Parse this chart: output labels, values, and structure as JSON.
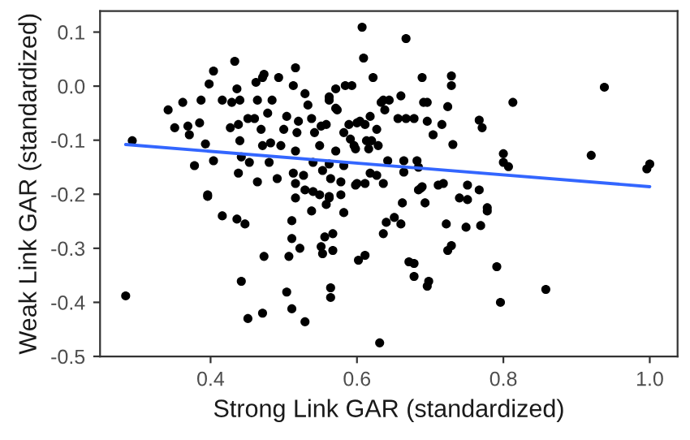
{
  "chart_data": {
    "type": "scatter",
    "xlabel": "Strong Link GAR (standardized)",
    "ylabel": "Weak Link GAR (standardized)",
    "xlim": [
      0.249,
      1.038
    ],
    "ylim": [
      -0.5,
      0.139
    ],
    "xticks": [
      {
        "value": 0.4,
        "label": "0.4"
      },
      {
        "value": 0.6,
        "label": "0.6"
      },
      {
        "value": 0.8,
        "label": "0.8"
      },
      {
        "value": 1.0,
        "label": "1.0"
      }
    ],
    "yticks": [
      {
        "value": -0.5,
        "label": "-0.5"
      },
      {
        "value": -0.4,
        "label": "-0.4"
      },
      {
        "value": -0.3,
        "label": "-0.3"
      },
      {
        "value": -0.2,
        "label": "-0.2"
      },
      {
        "value": -0.1,
        "label": "-0.1"
      },
      {
        "value": 0.0,
        "label": "0.0"
      },
      {
        "value": 0.1,
        "label": "0.1"
      }
    ],
    "grid": false,
    "legend": false,
    "series": [
      {
        "marker": "circle",
        "color": "#000000",
        "x": [
          0.293,
          0.342,
          0.351,
          0.362,
          0.369,
          0.371,
          0.378,
          0.385,
          0.387,
          0.393,
          0.396,
          0.398,
          0.404,
          0.404,
          0.416,
          0.427,
          0.429,
          0.433,
          0.436,
          0.438,
          0.44,
          0.442,
          0.438,
          0.44,
          0.451,
          0.453,
          0.46,
          0.462,
          0.464,
          0.469,
          0.471,
          0.471,
          0.473,
          0.478,
          0.48,
          0.482,
          0.484,
          0.491,
          0.493,
          0.496,
          0.5,
          0.504,
          0.513,
          0.516,
          0.518,
          0.516,
          0.513,
          0.52,
          0.527,
          0.529,
          0.533,
          0.538,
          0.54,
          0.542,
          0.549,
          0.551,
          0.553,
          0.558,
          0.562,
          0.564,
          0.571,
          0.573,
          0.578,
          0.582,
          0.584,
          0.589,
          0.593,
          0.596,
          0.6,
          0.604,
          0.607,
          0.609,
          0.611,
          0.613,
          0.618,
          0.622,
          0.627,
          0.629,
          0.633,
          0.638,
          0.667,
          0.562,
          0.571,
          0.636,
          0.644,
          0.66,
          0.689,
          0.729,
          0.729,
          0.691,
          0.696,
          0.724,
          0.618,
          0.656,
          0.667,
          0.678,
          0.696,
          0.716,
          0.767,
          0.771,
          0.813,
          0.704,
          0.6,
          0.591,
          0.62,
          0.616,
          0.598,
          0.571,
          0.731,
          0.938,
          0.8,
          0.8,
          0.807,
          0.92,
          1.0,
          0.996,
          0.642,
          0.664,
          0.682,
          0.664,
          0.684,
          0.562,
          0.582,
          0.627,
          0.611,
          0.636,
          0.689,
          0.684,
          0.711,
          0.718,
          0.751,
          0.767,
          0.662,
          0.693,
          0.74,
          0.751,
          0.778,
          0.562,
          0.578,
          0.582,
          0.567,
          0.567,
          0.687,
          0.778,
          0.636,
          0.64,
          0.651,
          0.66,
          0.722,
          0.749,
          0.769,
          0.602,
          0.611,
          0.671,
          0.678,
          0.678,
          0.724,
          0.729,
          0.698,
          0.696,
          0.564,
          0.564,
          0.791,
          0.796,
          0.858,
          0.631,
          0.284,
          0.396,
          0.416,
          0.436,
          0.447,
          0.442,
          0.451,
          0.471,
          0.473,
          0.464,
          0.504,
          0.511,
          0.529,
          0.507,
          0.522,
          0.511,
          0.511,
          0.516,
          0.516,
          0.529,
          0.538,
          0.54,
          0.549,
          0.551,
          0.553,
          0.556,
          0.558,
          0.562,
          0.598
        ],
        "values": [
          -0.101,
          -0.044,
          -0.077,
          -0.03,
          -0.074,
          -0.09,
          -0.147,
          -0.068,
          -0.026,
          -0.107,
          -0.201,
          0.004,
          0.028,
          -0.138,
          -0.026,
          -0.077,
          -0.03,
          0.046,
          -0.005,
          -0.071,
          -0.101,
          -0.131,
          -0.161,
          -0.026,
          -0.06,
          -0.141,
          -0.06,
          0.007,
          -0.026,
          -0.08,
          -0.11,
          0.016,
          0.022,
          -0.05,
          -0.141,
          -0.105,
          -0.026,
          -0.171,
          0.016,
          -0.11,
          -0.08,
          -0.056,
          0.001,
          0.034,
          -0.086,
          -0.12,
          -0.161,
          -0.065,
          -0.165,
          -0.014,
          -0.035,
          -0.06,
          -0.141,
          -0.086,
          -0.11,
          -0.074,
          -0.156,
          -0.071,
          -0.026,
          -0.171,
          -0.005,
          -0.044,
          -0.177,
          -0.086,
          0.001,
          -0.071,
          0.001,
          -0.11,
          -0.18,
          -0.065,
          0.109,
          0.052,
          -0.071,
          -0.101,
          -0.161,
          0.016,
          -0.08,
          -0.11,
          -0.03,
          -0.044,
          0.088,
          -0.02,
          -0.041,
          -0.026,
          -0.026,
          -0.018,
          0.016,
          0.019,
          0.001,
          -0.03,
          -0.03,
          -0.038,
          -0.056,
          -0.06,
          -0.06,
          -0.06,
          -0.065,
          -0.071,
          -0.063,
          -0.077,
          -0.03,
          -0.09,
          -0.068,
          -0.098,
          -0.101,
          -0.116,
          -0.116,
          -0.12,
          -0.108,
          -0.002,
          -0.125,
          -0.141,
          -0.149,
          -0.128,
          -0.144,
          -0.153,
          -0.138,
          -0.138,
          -0.138,
          -0.159,
          -0.15,
          -0.144,
          -0.147,
          -0.165,
          -0.18,
          -0.18,
          -0.186,
          -0.192,
          -0.183,
          -0.18,
          -0.183,
          -0.192,
          -0.216,
          -0.216,
          -0.207,
          -0.21,
          -0.225,
          -0.204,
          -0.201,
          -0.234,
          -0.273,
          -0.304,
          -0.189,
          -0.231,
          -0.273,
          -0.252,
          -0.243,
          -0.255,
          -0.255,
          -0.261,
          -0.258,
          -0.322,
          -0.313,
          -0.325,
          -0.328,
          -0.352,
          -0.304,
          -0.295,
          -0.361,
          -0.37,
          -0.373,
          -0.391,
          -0.334,
          -0.4,
          -0.376,
          -0.475,
          -0.388,
          -0.204,
          -0.24,
          -0.246,
          -0.255,
          -0.361,
          -0.43,
          -0.42,
          -0.315,
          -0.177,
          -0.381,
          -0.412,
          -0.436,
          -0.315,
          -0.3,
          -0.249,
          -0.282,
          -0.18,
          -0.207,
          -0.192,
          -0.231,
          -0.195,
          -0.201,
          -0.297,
          -0.31,
          -0.279,
          -0.219,
          -0.207,
          -0.183
        ]
      },
      {
        "type": "line",
        "color": "#3366ff",
        "x": [
          0.284,
          1.0
        ],
        "values": [
          -0.108,
          -0.186
        ]
      }
    ]
  }
}
